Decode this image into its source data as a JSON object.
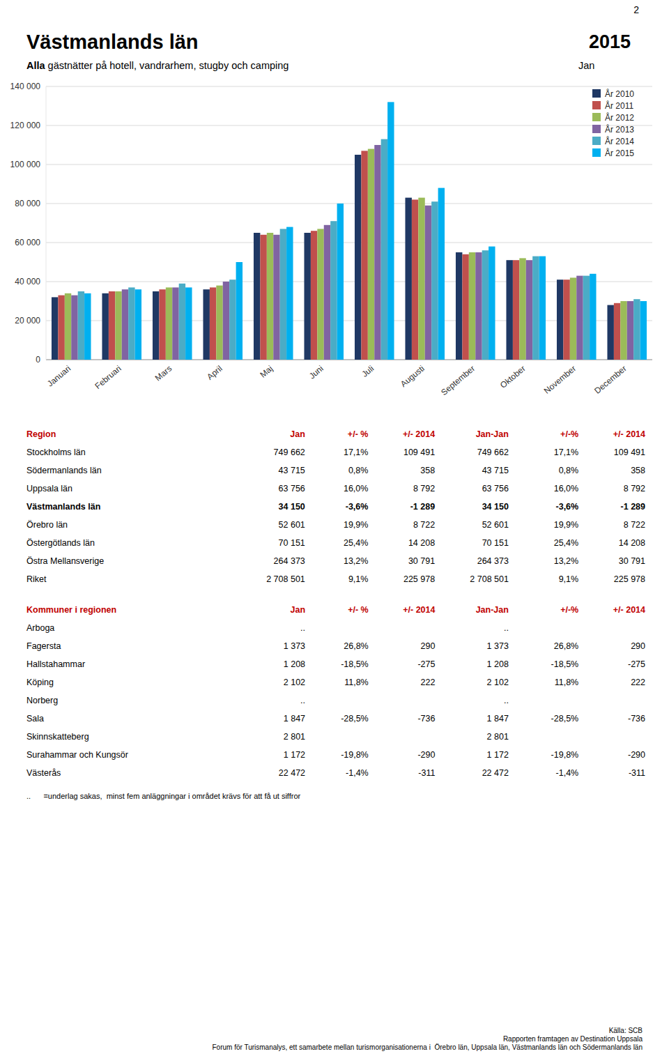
{
  "chart_data": {
    "type": "bar",
    "title": "Västmanlands län",
    "categories": [
      "Januari",
      "Februari",
      "Mars",
      "April",
      "Maj",
      "Juni",
      "Juli",
      "Augusti",
      "September",
      "Oktober",
      "November",
      "December"
    ],
    "series": [
      {
        "name": "År 2010",
        "color": "#1F3864",
        "values": [
          32000,
          34000,
          35000,
          36000,
          65000,
          65000,
          105000,
          83000,
          55000,
          51000,
          41000,
          28000
        ]
      },
      {
        "name": "År 2011",
        "color": "#C0504D",
        "values": [
          33000,
          35000,
          36000,
          37000,
          64000,
          66000,
          107000,
          82000,
          54000,
          51000,
          41000,
          29000
        ]
      },
      {
        "name": "År 2012",
        "color": "#9BBB59",
        "values": [
          34000,
          35000,
          37000,
          38000,
          65000,
          67000,
          108000,
          83000,
          55000,
          52000,
          42000,
          30000
        ]
      },
      {
        "name": "År 2013",
        "color": "#8064A2",
        "values": [
          33000,
          36000,
          37000,
          40000,
          64000,
          69000,
          110000,
          79000,
          55000,
          51000,
          43000,
          30000
        ]
      },
      {
        "name": "År 2014",
        "color": "#4BACC6",
        "values": [
          35000,
          37000,
          39000,
          41000,
          67000,
          71000,
          113000,
          81000,
          56000,
          53000,
          43000,
          31000
        ]
      },
      {
        "name": "År 2015",
        "color": "#00B0F0",
        "values": [
          34000,
          36000,
          37000,
          50000,
          68000,
          80000,
          132000,
          88000,
          58000,
          53000,
          44000,
          30000
        ]
      }
    ],
    "ylim": [
      0,
      140000
    ],
    "yticks": [
      0,
      {
        "value": 20000,
        "label": "20 000"
      },
      {
        "value": 40000,
        "label": "40 000"
      },
      {
        "value": 60000,
        "label": "60 000"
      },
      {
        "value": 80000,
        "label": "80 000"
      },
      {
        "value": 100000,
        "label": "100 000"
      },
      {
        "value": 120000,
        "label": "120 000"
      },
      {
        "value": 140000,
        "label": "140 000"
      }
    ],
    "grid": true,
    "legend": "upper right"
  },
  "page_number": "2",
  "year": "2015",
  "subtitle": [
    "Alla",
    " gästnätter på hotell, vandrarhem, stugby och camping"
  ],
  "period_label": "Jan",
  "tables": [
    {
      "headers": [
        "Region",
        "Jan",
        "+/- %",
        "+/- 2014",
        "Jan-Jan",
        "+/-%",
        "+/- 2014"
      ],
      "rows": [
        [
          "Stockholms län",
          "749 662",
          "17,1%",
          "109 491",
          "749 662",
          "17,1%",
          "109 491"
        ],
        [
          "Södermanlands län",
          "43 715",
          "0,8%",
          "358",
          "43 715",
          "0,8%",
          "358"
        ],
        [
          "Uppsala län",
          "63 756",
          "16,0%",
          "8 792",
          "63 756",
          "16,0%",
          "8 792"
        ],
        [
          "Västmanlands län",
          "34 150",
          "-3,6%",
          "-1 289",
          "34 150",
          "-3,6%",
          "-1 289"
        ],
        [
          "Örebro län",
          "52 601",
          "19,9%",
          "8 722",
          "52 601",
          "19,9%",
          "8 722"
        ],
        [
          "Östergötlands län",
          "70 151",
          "25,4%",
          "14 208",
          "70 151",
          "25,4%",
          "14 208"
        ],
        [
          "Östra Mellansverige",
          "264 373",
          "13,2%",
          "30 791",
          "264 373",
          "13,2%",
          "30 791"
        ],
        [
          "Riket",
          "2 708 501",
          "9,1%",
          "225 978",
          "2 708 501",
          "9,1%",
          "225 978"
        ]
      ],
      "bold_rows": [
        3
      ]
    },
    {
      "headers": [
        "Kommuner i regionen",
        "Jan",
        "+/- %",
        "+/- 2014",
        "Jan-Jan",
        "+/-%",
        "+/- 2014"
      ],
      "rows": [
        [
          "Arboga",
          "..",
          null,
          null,
          "..",
          null,
          null
        ],
        [
          "Fagersta",
          "1 373",
          "26,8%",
          "290",
          "1 373",
          "26,8%",
          "290"
        ],
        [
          "Hallstahammar",
          "1 208",
          "-18,5%",
          "-275",
          "1 208",
          "-18,5%",
          "-275"
        ],
        [
          "Köping",
          "2 102",
          "11,8%",
          "222",
          "2 102",
          "11,8%",
          "222"
        ],
        [
          "Norberg",
          "..",
          null,
          null,
          "..",
          null,
          null
        ],
        [
          "Sala",
          "1 847",
          "-28,5%",
          "-736",
          "1 847",
          "-28,5%",
          "-736"
        ],
        [
          "Skinnskatteberg",
          "2 801",
          null,
          null,
          "2 801",
          null,
          null
        ],
        [
          "Surahammar och Kungsör",
          "1 172",
          "-19,8%",
          "-290",
          "1 172",
          "-19,8%",
          "-290"
        ],
        [
          "Västerås",
          "22 472",
          "-1,4%",
          "-311",
          "22 472",
          "-1,4%",
          "-311"
        ]
      ],
      "bold_rows": []
    }
  ],
  "footnote": "..      =underlag sakas,  minst fem anläggningar i området krävs för att få ut siffror",
  "sources": [
    "Källa: SCB",
    "Rapporten framtagen av Destination Uppsala",
    "Forum för Turismanalys, ett samarbete mellan turismorganisationerna i  Örebro län, Uppsala län, Västmanlands län och Södermanlands län"
  ]
}
